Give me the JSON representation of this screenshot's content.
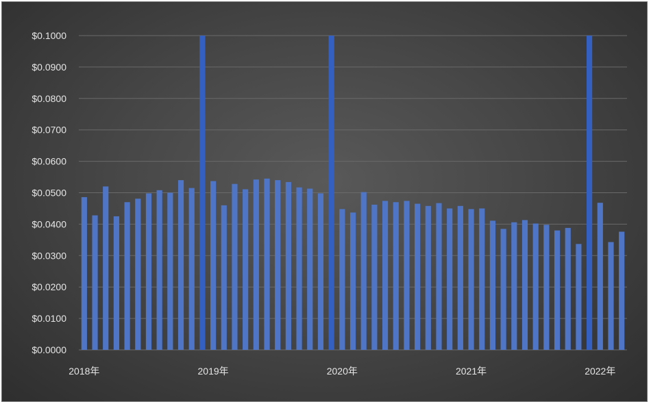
{
  "chart_data": {
    "type": "bar",
    "title": "",
    "xlabel": "",
    "ylabel": "",
    "ylim": [
      0,
      0.1
    ],
    "y_ticks": [
      "$0.0000",
      "$0.0100",
      "$0.0200",
      "$0.0300",
      "$0.0400",
      "$0.0500",
      "$0.0600",
      "$0.0700",
      "$0.0800",
      "$0.0900",
      "$0.1000"
    ],
    "y_tick_values": [
      0,
      0.01,
      0.02,
      0.03,
      0.04,
      0.05,
      0.06,
      0.07,
      0.08,
      0.09,
      0.1
    ],
    "x_labels": [
      {
        "label": "2018年",
        "index": 0
      },
      {
        "label": "2019年",
        "index": 12
      },
      {
        "label": "2020年",
        "index": 24
      },
      {
        "label": "2021年",
        "index": 36
      },
      {
        "label": "2022年",
        "index": 48
      }
    ],
    "grid": true,
    "legend": "none",
    "colors": {
      "bar": "#4f76c6",
      "bar_highlight": "#3461c1",
      "grid": "#6a6a6a",
      "text": "#e6e6e6"
    },
    "values": [
      0.0486,
      0.0428,
      0.052,
      0.0425,
      0.047,
      0.0481,
      0.0498,
      0.0508,
      0.05,
      0.054,
      0.0515,
      0.1,
      0.0537,
      0.046,
      0.0528,
      0.0511,
      0.0542,
      0.0545,
      0.054,
      0.0534,
      0.0517,
      0.0513,
      0.0498,
      0.1,
      0.0448,
      0.0437,
      0.0502,
      0.0462,
      0.0474,
      0.047,
      0.0474,
      0.0465,
      0.0458,
      0.0467,
      0.045,
      0.0458,
      0.0448,
      0.045,
      0.0411,
      0.0385,
      0.0406,
      0.0413,
      0.0402,
      0.0398,
      0.038,
      0.0388,
      0.0337,
      0.1,
      0.0468,
      0.0343,
      0.0376
    ],
    "highlight_indices": [
      11,
      23,
      47
    ]
  }
}
